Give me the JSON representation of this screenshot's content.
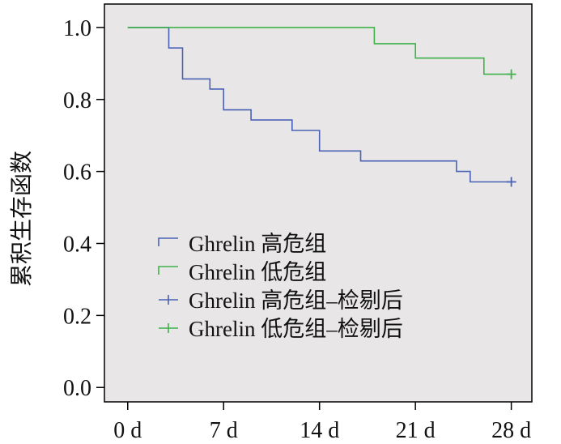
{
  "chart_data": {
    "type": "line",
    "title": "",
    "xlabel": "",
    "ylabel": "累积生存函数",
    "x_ticks": [
      "0 d",
      "7 d",
      "14 d",
      "21 d",
      "28 d"
    ],
    "x_tick_values": [
      0,
      7,
      14,
      21,
      28
    ],
    "y_ticks": [
      "0.0",
      "0.2",
      "0.4",
      "0.6",
      "0.8",
      "1.0"
    ],
    "y_tick_values": [
      0.0,
      0.2,
      0.4,
      0.6,
      0.8,
      1.0
    ],
    "xlim": [
      -1.7,
      29.5
    ],
    "ylim": [
      -0.04,
      1.065
    ],
    "grid": false,
    "background_color": "#e8e6e7",
    "legend_position": "lower-left",
    "series": [
      {
        "name": "Ghrelin 高危组",
        "color": "#4a62b5",
        "step": true,
        "points": [
          [
            0,
            1.0
          ],
          [
            3,
            1.0
          ],
          [
            3,
            0.943
          ],
          [
            4,
            0.943
          ],
          [
            4,
            0.857
          ],
          [
            6,
            0.857
          ],
          [
            6,
            0.829
          ],
          [
            7,
            0.829
          ],
          [
            7,
            0.771
          ],
          [
            9,
            0.771
          ],
          [
            9,
            0.743
          ],
          [
            12,
            0.743
          ],
          [
            12,
            0.714
          ],
          [
            14,
            0.714
          ],
          [
            14,
            0.657
          ],
          [
            17,
            0.657
          ],
          [
            17,
            0.629
          ],
          [
            24,
            0.629
          ],
          [
            24,
            0.6
          ],
          [
            25,
            0.6
          ],
          [
            25,
            0.571
          ],
          [
            28,
            0.571
          ]
        ]
      },
      {
        "name": "Ghrelin 低危组",
        "color": "#3fb24a",
        "step": true,
        "points": [
          [
            0,
            1.0
          ],
          [
            18,
            1.0
          ],
          [
            18,
            0.955
          ],
          [
            21,
            0.955
          ],
          [
            21,
            0.915
          ],
          [
            26,
            0.915
          ],
          [
            26,
            0.87
          ],
          [
            28,
            0.87
          ]
        ]
      },
      {
        "name": "Ghrelin 高危组–检剔后",
        "color": "#4a62b5",
        "marker": "+",
        "points": [
          [
            28,
            0.571
          ]
        ]
      },
      {
        "name": "Ghrelin 低危组–检剔后",
        "color": "#3fb24a",
        "marker": "+",
        "points": [
          [
            28,
            0.87
          ]
        ]
      }
    ],
    "legend_entries": [
      {
        "label": "Ghrelin 高危组",
        "color": "#4a62b5",
        "symbol": "step"
      },
      {
        "label": "Ghrelin 低危组",
        "color": "#3fb24a",
        "symbol": "step"
      },
      {
        "label": "Ghrelin 高危组–检剔后",
        "color": "#4a62b5",
        "symbol": "plus"
      },
      {
        "label": "Ghrelin 低危组–检剔后",
        "color": "#3fb24a",
        "symbol": "plus"
      }
    ]
  }
}
